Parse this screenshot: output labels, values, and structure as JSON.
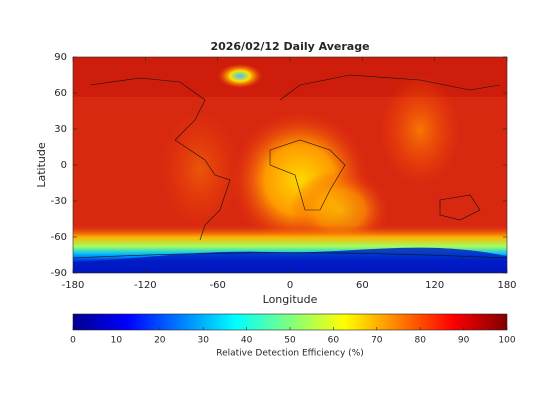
{
  "chart_data": {
    "type": "map",
    "title": "2026/02/12 Daily Average",
    "x_label": "Longitude",
    "y_label": "Latitude",
    "xlim": [
      -180,
      180
    ],
    "xticks": [
      -180,
      -120,
      -60,
      0,
      60,
      120,
      180
    ],
    "ylim": [
      -90,
      90
    ],
    "yticks": [
      90,
      60,
      30,
      0,
      -30,
      -60,
      -90
    ],
    "colormap": "jet",
    "colorbar_label": "Relative Detection Efficiency (%)",
    "clim": [
      0,
      100
    ],
    "colorbar_ticks": [
      0,
      10,
      20,
      30,
      40,
      50,
      60,
      70,
      80,
      90,
      100
    ]
  }
}
